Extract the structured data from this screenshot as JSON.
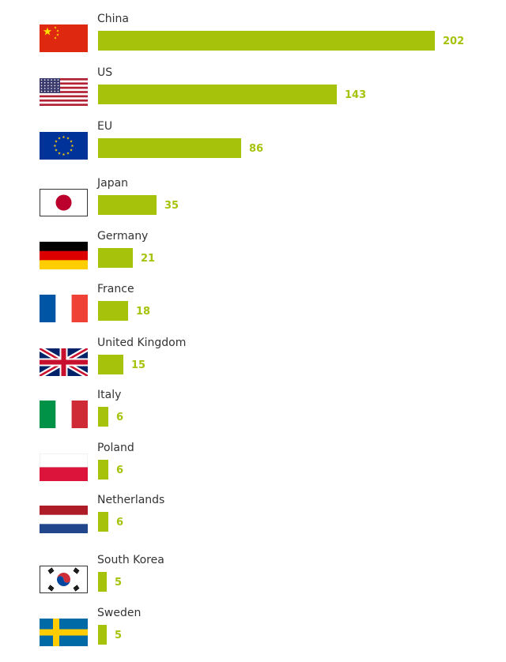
{
  "chart_data": {
    "type": "bar",
    "orientation": "horizontal",
    "categories": [
      "China",
      "US",
      "EU",
      "Japan",
      "Germany",
      "France",
      "United Kingdom",
      "Italy",
      "Poland",
      "Netherlands",
      "South Korea",
      "Sweden"
    ],
    "values": [
      202,
      143,
      86,
      35,
      21,
      18,
      15,
      6,
      6,
      6,
      5,
      5
    ],
    "flags": [
      "china-flag-icon",
      "us-flag-icon",
      "eu-flag-icon",
      "japan-flag-icon",
      "germany-flag-icon",
      "france-flag-icon",
      "uk-flag-icon",
      "italy-flag-icon",
      "poland-flag-icon",
      "netherlands-flag-icon",
      "south-korea-flag-icon",
      "sweden-flag-icon"
    ],
    "bar_color": "#a6c20a",
    "value_color": "#a6c20a",
    "xlim": [
      0,
      202
    ],
    "grid": false,
    "legend": "none"
  }
}
